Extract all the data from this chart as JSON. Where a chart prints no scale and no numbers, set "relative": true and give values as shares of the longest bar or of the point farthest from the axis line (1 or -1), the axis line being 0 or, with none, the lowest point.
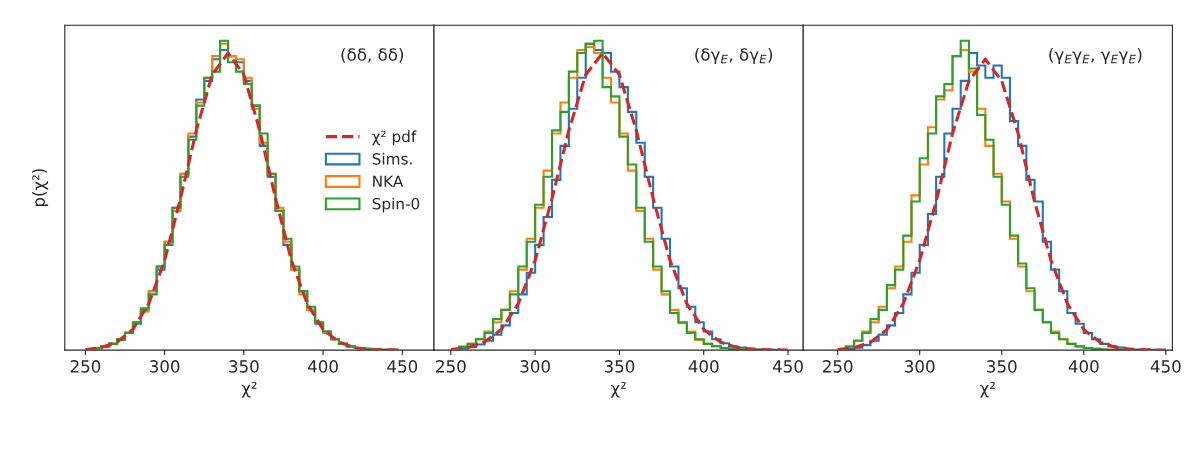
{
  "chart_data": [
    {
      "type": "histogram",
      "relative": true,
      "xlabel": "χ²",
      "ylabel": "p(χ²)",
      "annotations": [
        "(δδ, δδ)"
      ],
      "xlim": [
        237,
        470
      ],
      "xticks": [
        250,
        300,
        350,
        400,
        450
      ],
      "tick_labels": "x",
      "legend": "center right",
      "bins": [
        255,
        260,
        265,
        270,
        275,
        280,
        285,
        290,
        295,
        300,
        305,
        310,
        315,
        320,
        325,
        330,
        335,
        340,
        345,
        350,
        355,
        360,
        365,
        370,
        375,
        380,
        385,
        390,
        395,
        400,
        405,
        410,
        415,
        420,
        425,
        430,
        435,
        440,
        445
      ],
      "series": [
        {
          "name": "χ² pdf",
          "type": "line",
          "line_style": "dashed",
          "color": "#d62728",
          "x": [
            250,
            260,
            270,
            280,
            290,
            300,
            310,
            320,
            330,
            340,
            350,
            360,
            370,
            380,
            390,
            400,
            410,
            420,
            430,
            440,
            450
          ],
          "values": [
            0.002,
            0.008,
            0.026,
            0.067,
            0.15,
            0.29,
            0.49,
            0.71,
            0.89,
            0.96,
            0.89,
            0.71,
            0.49,
            0.29,
            0.15,
            0.067,
            0.026,
            0.008,
            0.002,
            0.001,
            0
          ]
        },
        {
          "name": "Sims.",
          "color": "#1f77b4",
          "values": [
            0.006,
            0.012,
            0.021,
            0.033,
            0.057,
            0.085,
            0.13,
            0.19,
            0.26,
            0.35,
            0.46,
            0.57,
            0.69,
            0.81,
            0.87,
            0.94,
            0.97,
            0.95,
            0.93,
            0.87,
            0.79,
            0.66,
            0.56,
            0.45,
            0.34,
            0.26,
            0.19,
            0.13,
            0.085,
            0.06,
            0.035,
            0.02,
            0.012,
            0.007,
            0.004,
            0.002,
            0.001,
            0.001
          ]
        },
        {
          "name": "NKA",
          "color": "#ff7f0e",
          "values": [
            0.007,
            0.011,
            0.02,
            0.035,
            0.055,
            0.09,
            0.125,
            0.19,
            0.27,
            0.35,
            0.45,
            0.57,
            0.7,
            0.8,
            0.88,
            0.95,
            0.99,
            0.95,
            0.94,
            0.88,
            0.78,
            0.67,
            0.57,
            0.46,
            0.35,
            0.26,
            0.18,
            0.13,
            0.09,
            0.055,
            0.035,
            0.02,
            0.012,
            0.007,
            0.004,
            0.002,
            0.001,
            0.001
          ]
        },
        {
          "name": "Spin-0",
          "color": "#2ca02c",
          "values": [
            0.006,
            0.012,
            0.02,
            0.035,
            0.055,
            0.09,
            0.135,
            0.18,
            0.27,
            0.34,
            0.46,
            0.56,
            0.68,
            0.79,
            0.88,
            0.9,
            1.0,
            0.93,
            0.9,
            0.86,
            0.79,
            0.7,
            0.57,
            0.45,
            0.36,
            0.27,
            0.19,
            0.14,
            0.09,
            0.06,
            0.035,
            0.02,
            0.012,
            0.007,
            0.004,
            0.002,
            0.001,
            0.001
          ]
        }
      ]
    },
    {
      "type": "histogram",
      "relative": true,
      "xlabel": "χ²",
      "annotations": [
        "(δγ$_{E}$, δγ$_{E}$)"
      ],
      "xlim": [
        240,
        459
      ],
      "xticks": [
        250,
        300,
        350,
        400,
        450
      ],
      "tick_labels": "x",
      "bins": [
        255,
        260,
        265,
        270,
        275,
        280,
        285,
        290,
        295,
        300,
        305,
        310,
        315,
        320,
        325,
        330,
        335,
        340,
        345,
        350,
        355,
        360,
        365,
        370,
        375,
        380,
        385,
        390,
        395,
        400,
        405,
        410,
        415,
        420,
        425,
        430,
        435,
        440,
        445
      ],
      "series": [
        {
          "type": "line",
          "line_style": "dashed",
          "color": "#d62728",
          "x": [
            250,
            260,
            270,
            280,
            290,
            300,
            310,
            320,
            330,
            340,
            350,
            360,
            370,
            380,
            390,
            400,
            410,
            420,
            430,
            440,
            450
          ],
          "values": [
            0.002,
            0.008,
            0.026,
            0.067,
            0.15,
            0.29,
            0.49,
            0.71,
            0.89,
            0.96,
            0.89,
            0.71,
            0.49,
            0.29,
            0.15,
            0.067,
            0.026,
            0.008,
            0.002,
            0.001,
            0
          ]
        },
        {
          "color": "#1f77b4",
          "values": [
            0.005,
            0.01,
            0.018,
            0.03,
            0.05,
            0.08,
            0.12,
            0.18,
            0.25,
            0.34,
            0.43,
            0.55,
            0.66,
            0.78,
            0.88,
            0.99,
            0.97,
            0.96,
            0.9,
            0.85,
            0.77,
            0.67,
            0.56,
            0.46,
            0.36,
            0.27,
            0.2,
            0.14,
            0.09,
            0.06,
            0.035,
            0.022,
            0.012,
            0.008,
            0.005,
            0.002,
            0.001,
            0.001
          ]
        },
        {
          "color": "#ff7f0e",
          "values": [
            0.012,
            0.02,
            0.034,
            0.06,
            0.09,
            0.13,
            0.19,
            0.26,
            0.36,
            0.46,
            0.58,
            0.7,
            0.8,
            0.88,
            0.97,
            0.98,
            0.96,
            0.88,
            0.8,
            0.7,
            0.58,
            0.45,
            0.36,
            0.26,
            0.18,
            0.13,
            0.087,
            0.06,
            0.033,
            0.02,
            0.012,
            0.007,
            0.004,
            0.002,
            0.001,
            0.001,
            0,
            0
          ]
        },
        {
          "color": "#2ca02c",
          "values": [
            0.01,
            0.02,
            0.036,
            0.055,
            0.1,
            0.13,
            0.18,
            0.27,
            0.35,
            0.47,
            0.56,
            0.71,
            0.77,
            0.9,
            0.96,
            0.99,
            1.0,
            0.85,
            0.82,
            0.69,
            0.6,
            0.46,
            0.35,
            0.27,
            0.19,
            0.12,
            0.09,
            0.055,
            0.035,
            0.02,
            0.013,
            0.007,
            0.004,
            0.002,
            0.001,
            0.001,
            0,
            0
          ]
        }
      ]
    },
    {
      "type": "histogram",
      "relative": true,
      "xlabel": "χ²",
      "annotations": [
        "(γ$_{E}$γ$_{E}$, γ$_{E}$γ$_{E}$)"
      ],
      "xlim": [
        229,
        454
      ],
      "xticks": [
        250,
        300,
        350,
        400,
        450
      ],
      "tick_labels": "x",
      "bins": [
        255,
        260,
        265,
        270,
        275,
        280,
        285,
        290,
        295,
        300,
        305,
        310,
        315,
        320,
        325,
        330,
        335,
        340,
        345,
        350,
        355,
        360,
        365,
        370,
        375,
        380,
        385,
        390,
        395,
        400,
        405,
        410,
        415,
        420,
        425,
        430,
        435,
        440,
        445
      ],
      "series": [
        {
          "type": "line",
          "line_style": "dashed",
          "color": "#d62728",
          "x": [
            250,
            260,
            270,
            280,
            290,
            300,
            310,
            320,
            330,
            340,
            350,
            360,
            370,
            380,
            390,
            400,
            410,
            420,
            430,
            440,
            450
          ],
          "values": [
            0.002,
            0.008,
            0.025,
            0.066,
            0.15,
            0.29,
            0.48,
            0.7,
            0.87,
            0.94,
            0.87,
            0.7,
            0.48,
            0.29,
            0.15,
            0.066,
            0.025,
            0.008,
            0.002,
            0.001,
            0
          ]
        },
        {
          "color": "#1f77b4",
          "values": [
            0.004,
            0.008,
            0.016,
            0.03,
            0.05,
            0.08,
            0.12,
            0.18,
            0.25,
            0.34,
            0.44,
            0.56,
            0.7,
            0.78,
            0.87,
            0.96,
            0.92,
            0.88,
            0.92,
            0.88,
            0.74,
            0.66,
            0.55,
            0.48,
            0.35,
            0.26,
            0.19,
            0.12,
            0.085,
            0.055,
            0.035,
            0.02,
            0.012,
            0.008,
            0.004,
            0.002,
            0.001,
            0.001
          ]
        },
        {
          "color": "#ff7f0e",
          "values": [
            0.01,
            0.03,
            0.06,
            0.09,
            0.14,
            0.2,
            0.27,
            0.35,
            0.5,
            0.6,
            0.72,
            0.81,
            0.84,
            0.95,
            0.97,
            0.9,
            0.78,
            0.66,
            0.57,
            0.48,
            0.36,
            0.27,
            0.19,
            0.13,
            0.09,
            0.06,
            0.035,
            0.02,
            0.012,
            0.007,
            0.004,
            0.002,
            0.001,
            0.001,
            0,
            0,
            0,
            0
          ]
        },
        {
          "color": "#2ca02c",
          "values": [
            0.012,
            0.03,
            0.055,
            0.1,
            0.13,
            0.21,
            0.26,
            0.37,
            0.48,
            0.62,
            0.7,
            0.82,
            0.86,
            0.95,
            1.0,
            0.91,
            0.76,
            0.68,
            0.56,
            0.47,
            0.37,
            0.28,
            0.2,
            0.13,
            0.09,
            0.055,
            0.035,
            0.02,
            0.012,
            0.007,
            0.004,
            0.002,
            0.001,
            0.001,
            0,
            0,
            0,
            0
          ]
        }
      ]
    }
  ]
}
